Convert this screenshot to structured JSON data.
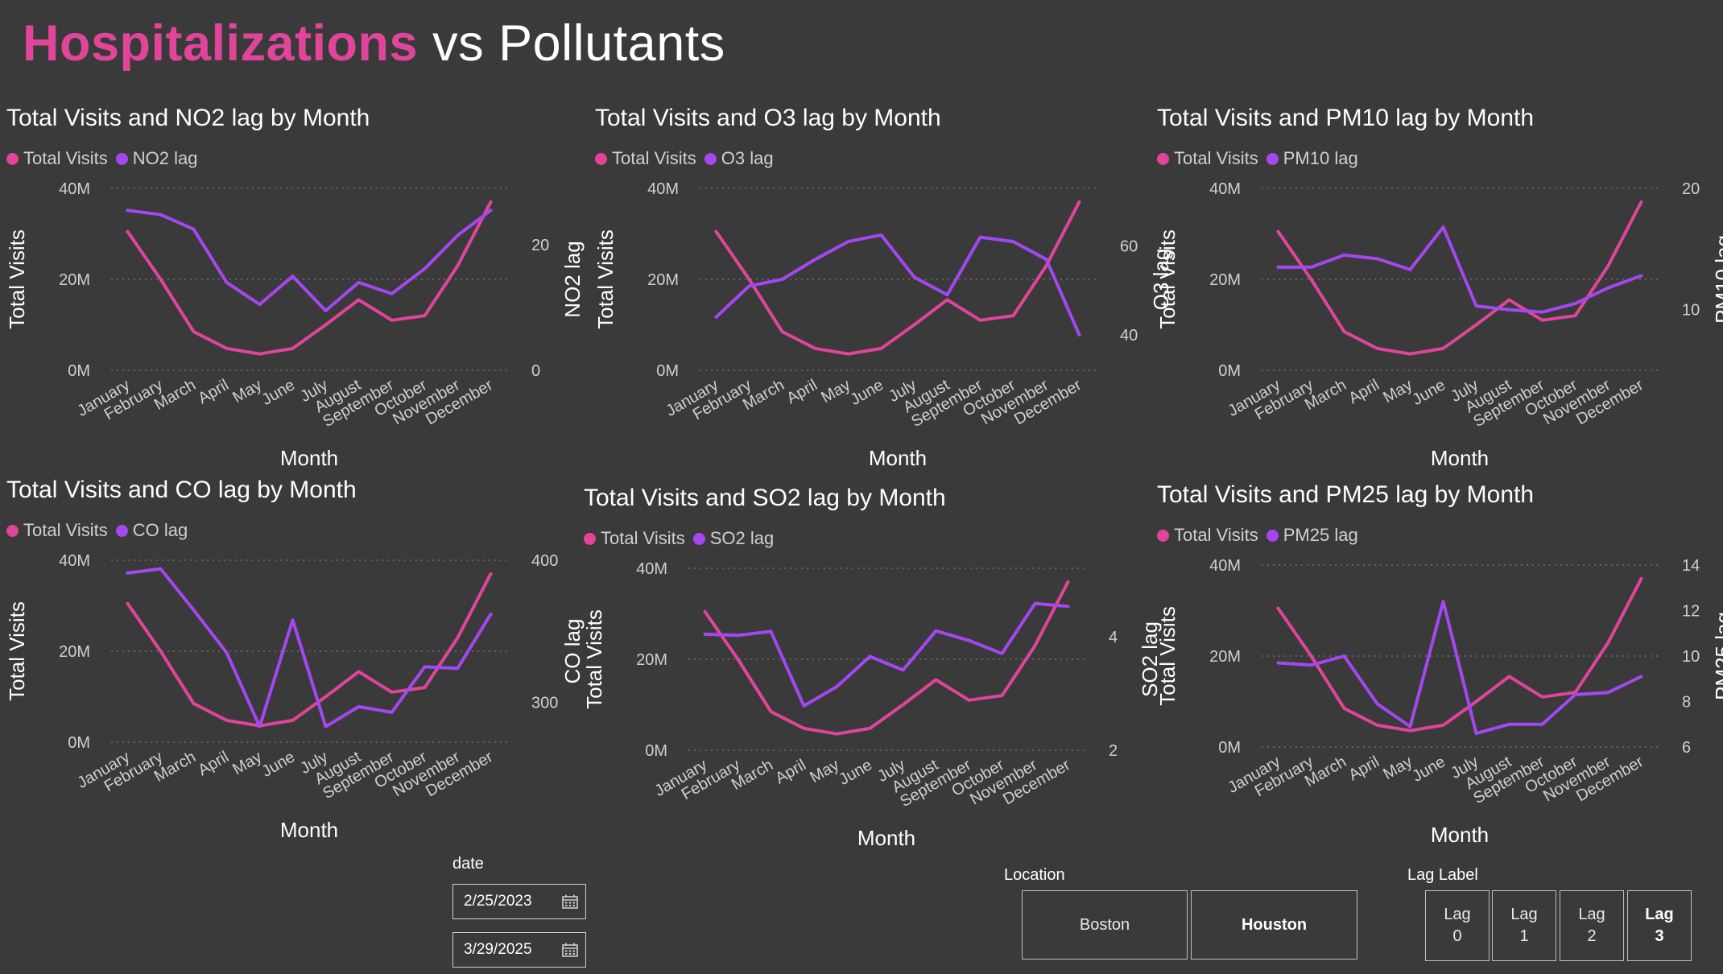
{
  "page": {
    "title_accent": "Hospitalizations",
    "title_rest": "vs Pollutants"
  },
  "colors": {
    "background": "#3a3a3a",
    "total_visits": "#e0459a",
    "lag": "#a447f0",
    "axis_text": "#d0d0d0"
  },
  "months": [
    "January",
    "February",
    "March",
    "April",
    "May",
    "June",
    "July",
    "August",
    "September",
    "October",
    "November",
    "December"
  ],
  "chart_data": [
    {
      "id": "no2",
      "type": "line",
      "title": "Total Visits and NO2 lag by Month",
      "xlabel": "Month",
      "ylabel": "Total Visits",
      "y2label": "NO2 lag",
      "ylim": [
        0,
        40
      ],
      "yticks": [
        "0M",
        "20M",
        "40M"
      ],
      "y2lim": [
        0,
        29
      ],
      "y2ticks": [
        0,
        20
      ],
      "legend_position": "top-left",
      "grid": true,
      "series": [
        {
          "name": "Total Visits",
          "axis": "left",
          "values": [
            30.5,
            20,
            8.5,
            4.8,
            3.6,
            4.8,
            10,
            15.5,
            11,
            12,
            23,
            37
          ]
        },
        {
          "name": "NO2 lag",
          "axis": "right",
          "values": [
            25.5,
            24.8,
            22.5,
            14,
            10.5,
            15,
            9.5,
            14,
            12.2,
            16.2,
            21.5,
            25.5
          ]
        }
      ]
    },
    {
      "id": "o3",
      "type": "line",
      "title": "Total Visits and O3 lag by Month",
      "xlabel": "Month",
      "ylabel": "Total Visits",
      "y2label": "O3 lag",
      "ylim": [
        0,
        40
      ],
      "yticks": [
        "0M",
        "20M",
        "40M"
      ],
      "y2lim": [
        32,
        73
      ],
      "y2ticks": [
        40,
        60
      ],
      "legend_position": "top-left",
      "grid": true,
      "series": [
        {
          "name": "Total Visits",
          "axis": "left",
          "values": [
            30.5,
            20,
            8.5,
            4.8,
            3.6,
            4.8,
            10,
            15.5,
            11,
            12,
            23,
            37
          ]
        },
        {
          "name": "O3 lag",
          "axis": "right",
          "values": [
            44,
            51,
            52.5,
            57,
            61,
            62.5,
            53,
            49,
            62,
            61,
            57,
            40
          ]
        }
      ]
    },
    {
      "id": "pm10",
      "type": "line",
      "title": "Total Visits and PM10 lag by Month",
      "xlabel": "Month",
      "ylabel": "Total Visits",
      "y2label": "PM10 lag",
      "ylim": [
        0,
        40
      ],
      "yticks": [
        "0M",
        "20M",
        "40M"
      ],
      "y2lim": [
        5,
        20
      ],
      "y2ticks": [
        10,
        20
      ],
      "legend_position": "top-left",
      "grid": true,
      "series": [
        {
          "name": "Total Visits",
          "axis": "left",
          "values": [
            30.5,
            20,
            8.5,
            4.8,
            3.6,
            4.8,
            10,
            15.5,
            11,
            12,
            23,
            37
          ]
        },
        {
          "name": "PM10 lag",
          "axis": "right",
          "values": [
            13.5,
            13.5,
            14.5,
            14.2,
            13.3,
            16.8,
            10.3,
            10,
            9.8,
            10.5,
            11.8,
            12.8
          ]
        }
      ]
    },
    {
      "id": "co",
      "type": "line",
      "title": "Total Visits and CO lag by Month",
      "xlabel": "Month",
      "ylabel": "Total Visits",
      "y2label": "CO lag",
      "ylim": [
        0,
        40
      ],
      "yticks": [
        "0M",
        "20M",
        "40M"
      ],
      "y2lim": [
        272,
        400
      ],
      "y2ticks": [
        300,
        400
      ],
      "legend_position": "top-left",
      "grid": true,
      "series": [
        {
          "name": "Total Visits",
          "axis": "left",
          "values": [
            30.5,
            20,
            8.5,
            4.8,
            3.6,
            4.8,
            10,
            15.5,
            11,
            12,
            23,
            37
          ]
        },
        {
          "name": "CO lag",
          "axis": "right",
          "values": [
            391,
            394,
            365,
            335,
            283,
            358,
            283,
            297,
            293,
            325,
            324,
            362
          ]
        }
      ]
    },
    {
      "id": "so2",
      "type": "line",
      "title": "Total Visits and SO2 lag by Month",
      "xlabel": "Month",
      "ylabel": "Total Visits",
      "y2label": "SO2 lag",
      "ylim": [
        0,
        40
      ],
      "yticks": [
        "0M",
        "20M",
        "40M"
      ],
      "y2lim": [
        2,
        5.2
      ],
      "y2ticks": [
        2,
        4
      ],
      "legend_position": "top-left",
      "grid": true,
      "series": [
        {
          "name": "Total Visits",
          "axis": "left",
          "values": [
            30.5,
            20,
            8.5,
            4.8,
            3.6,
            4.8,
            10,
            15.5,
            11,
            12,
            23,
            37
          ]
        },
        {
          "name": "SO2 lag",
          "axis": "right",
          "values": [
            4.04,
            4.02,
            4.09,
            2.78,
            3.12,
            3.65,
            3.41,
            4.1,
            3.93,
            3.7,
            4.58,
            4.53
          ]
        }
      ]
    },
    {
      "id": "pm25",
      "type": "line",
      "title": "Total Visits and PM25 lag by Month",
      "xlabel": "Month",
      "ylabel": "Total Visits",
      "y2label": "PM25 lag",
      "ylim": [
        0,
        40
      ],
      "yticks": [
        "0M",
        "20M",
        "40M"
      ],
      "y2lim": [
        6,
        14
      ],
      "y2ticks": [
        6,
        8,
        10,
        12,
        14
      ],
      "legend_position": "top-left",
      "grid": true,
      "series": [
        {
          "name": "Total Visits",
          "axis": "left",
          "values": [
            30.5,
            20,
            8.5,
            4.8,
            3.6,
            4.8,
            10,
            15.5,
            11,
            12,
            23,
            37
          ]
        },
        {
          "name": "PM25 lag",
          "axis": "right",
          "values": [
            9.7,
            9.6,
            10,
            7.9,
            6.9,
            12.4,
            6.6,
            7,
            7,
            8.3,
            8.4,
            9.1
          ]
        }
      ]
    }
  ],
  "filters": {
    "date": {
      "label": "date",
      "start": "2/25/2023",
      "end": "3/29/2025"
    },
    "location": {
      "label": "Location",
      "options": [
        "Boston",
        "Houston"
      ],
      "selected": "Houston"
    },
    "lag": {
      "label": "Lag Label",
      "options": [
        {
          "word": "Lag",
          "num": "0"
        },
        {
          "word": "Lag",
          "num": "1"
        },
        {
          "word": "Lag",
          "num": "2"
        },
        {
          "word": "Lag",
          "num": "3"
        }
      ],
      "selected": "3"
    }
  }
}
